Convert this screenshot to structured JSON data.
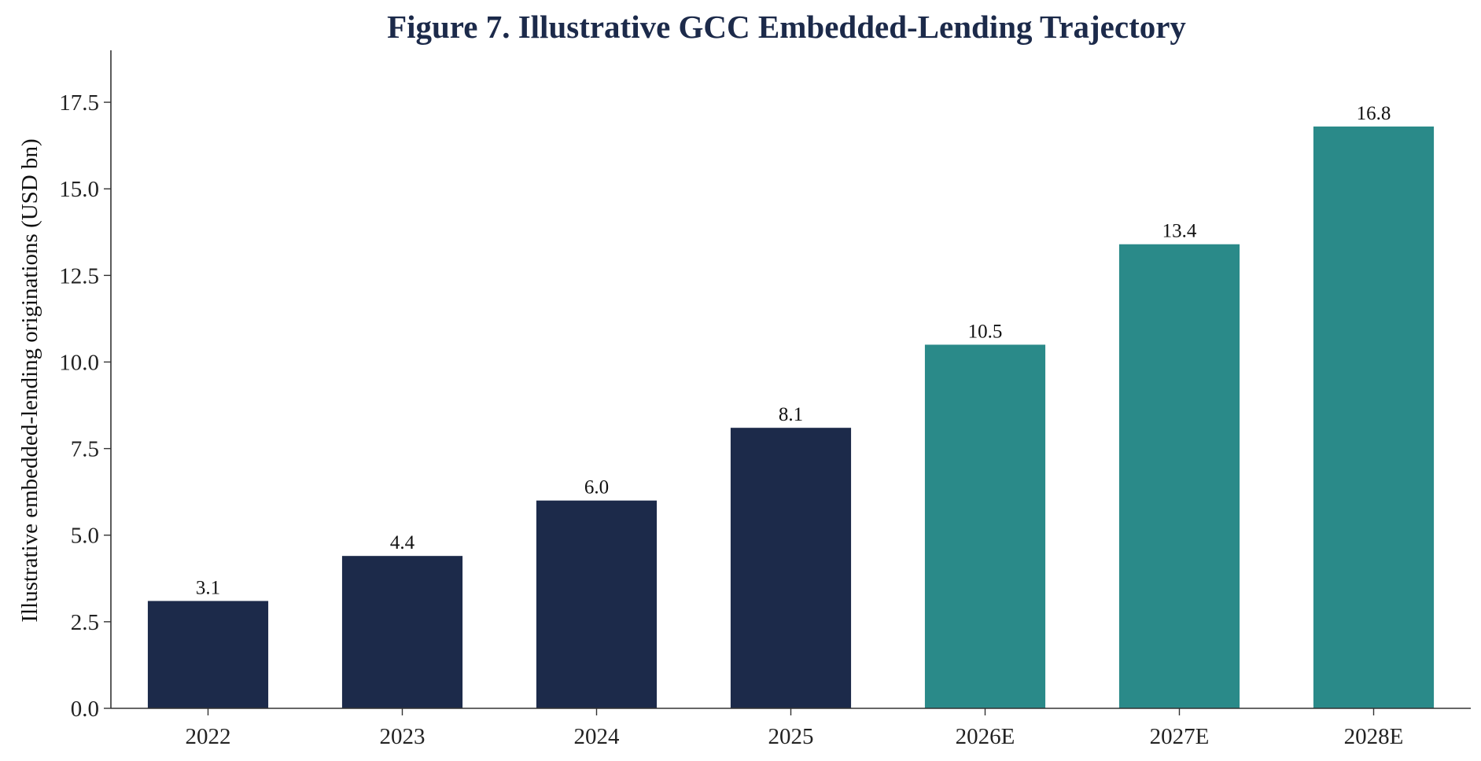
{
  "chart_data": {
    "type": "bar",
    "title": "Figure 7. Illustrative GCC Embedded-Lending Trajectory",
    "xlabel": "",
    "ylabel": "Illustrative embedded-lending originations (USD bn)",
    "categories": [
      "2022",
      "2023",
      "2024",
      "2025",
      "2026E",
      "2027E",
      "2028E"
    ],
    "values": [
      3.1,
      4.4,
      6.0,
      8.1,
      10.5,
      13.4,
      16.8
    ],
    "value_labels": [
      "3.1",
      "4.4",
      "6.0",
      "8.1",
      "10.5",
      "13.4",
      "16.8"
    ],
    "bar_kind": [
      "actual",
      "actual",
      "actual",
      "actual",
      "estimate",
      "estimate",
      "estimate"
    ],
    "ylim": [
      0,
      19
    ],
    "yticks": [
      0.0,
      2.5,
      5.0,
      7.5,
      10.0,
      12.5,
      15.0,
      17.5
    ],
    "ytick_labels": [
      "0.0",
      "2.5",
      "5.0",
      "7.5",
      "10.0",
      "12.5",
      "15.0",
      "17.5"
    ],
    "grid": false,
    "colors": {
      "actual": "#1c2a4a",
      "estimate": "#2a8a89",
      "title": "#1c2a4a"
    }
  }
}
